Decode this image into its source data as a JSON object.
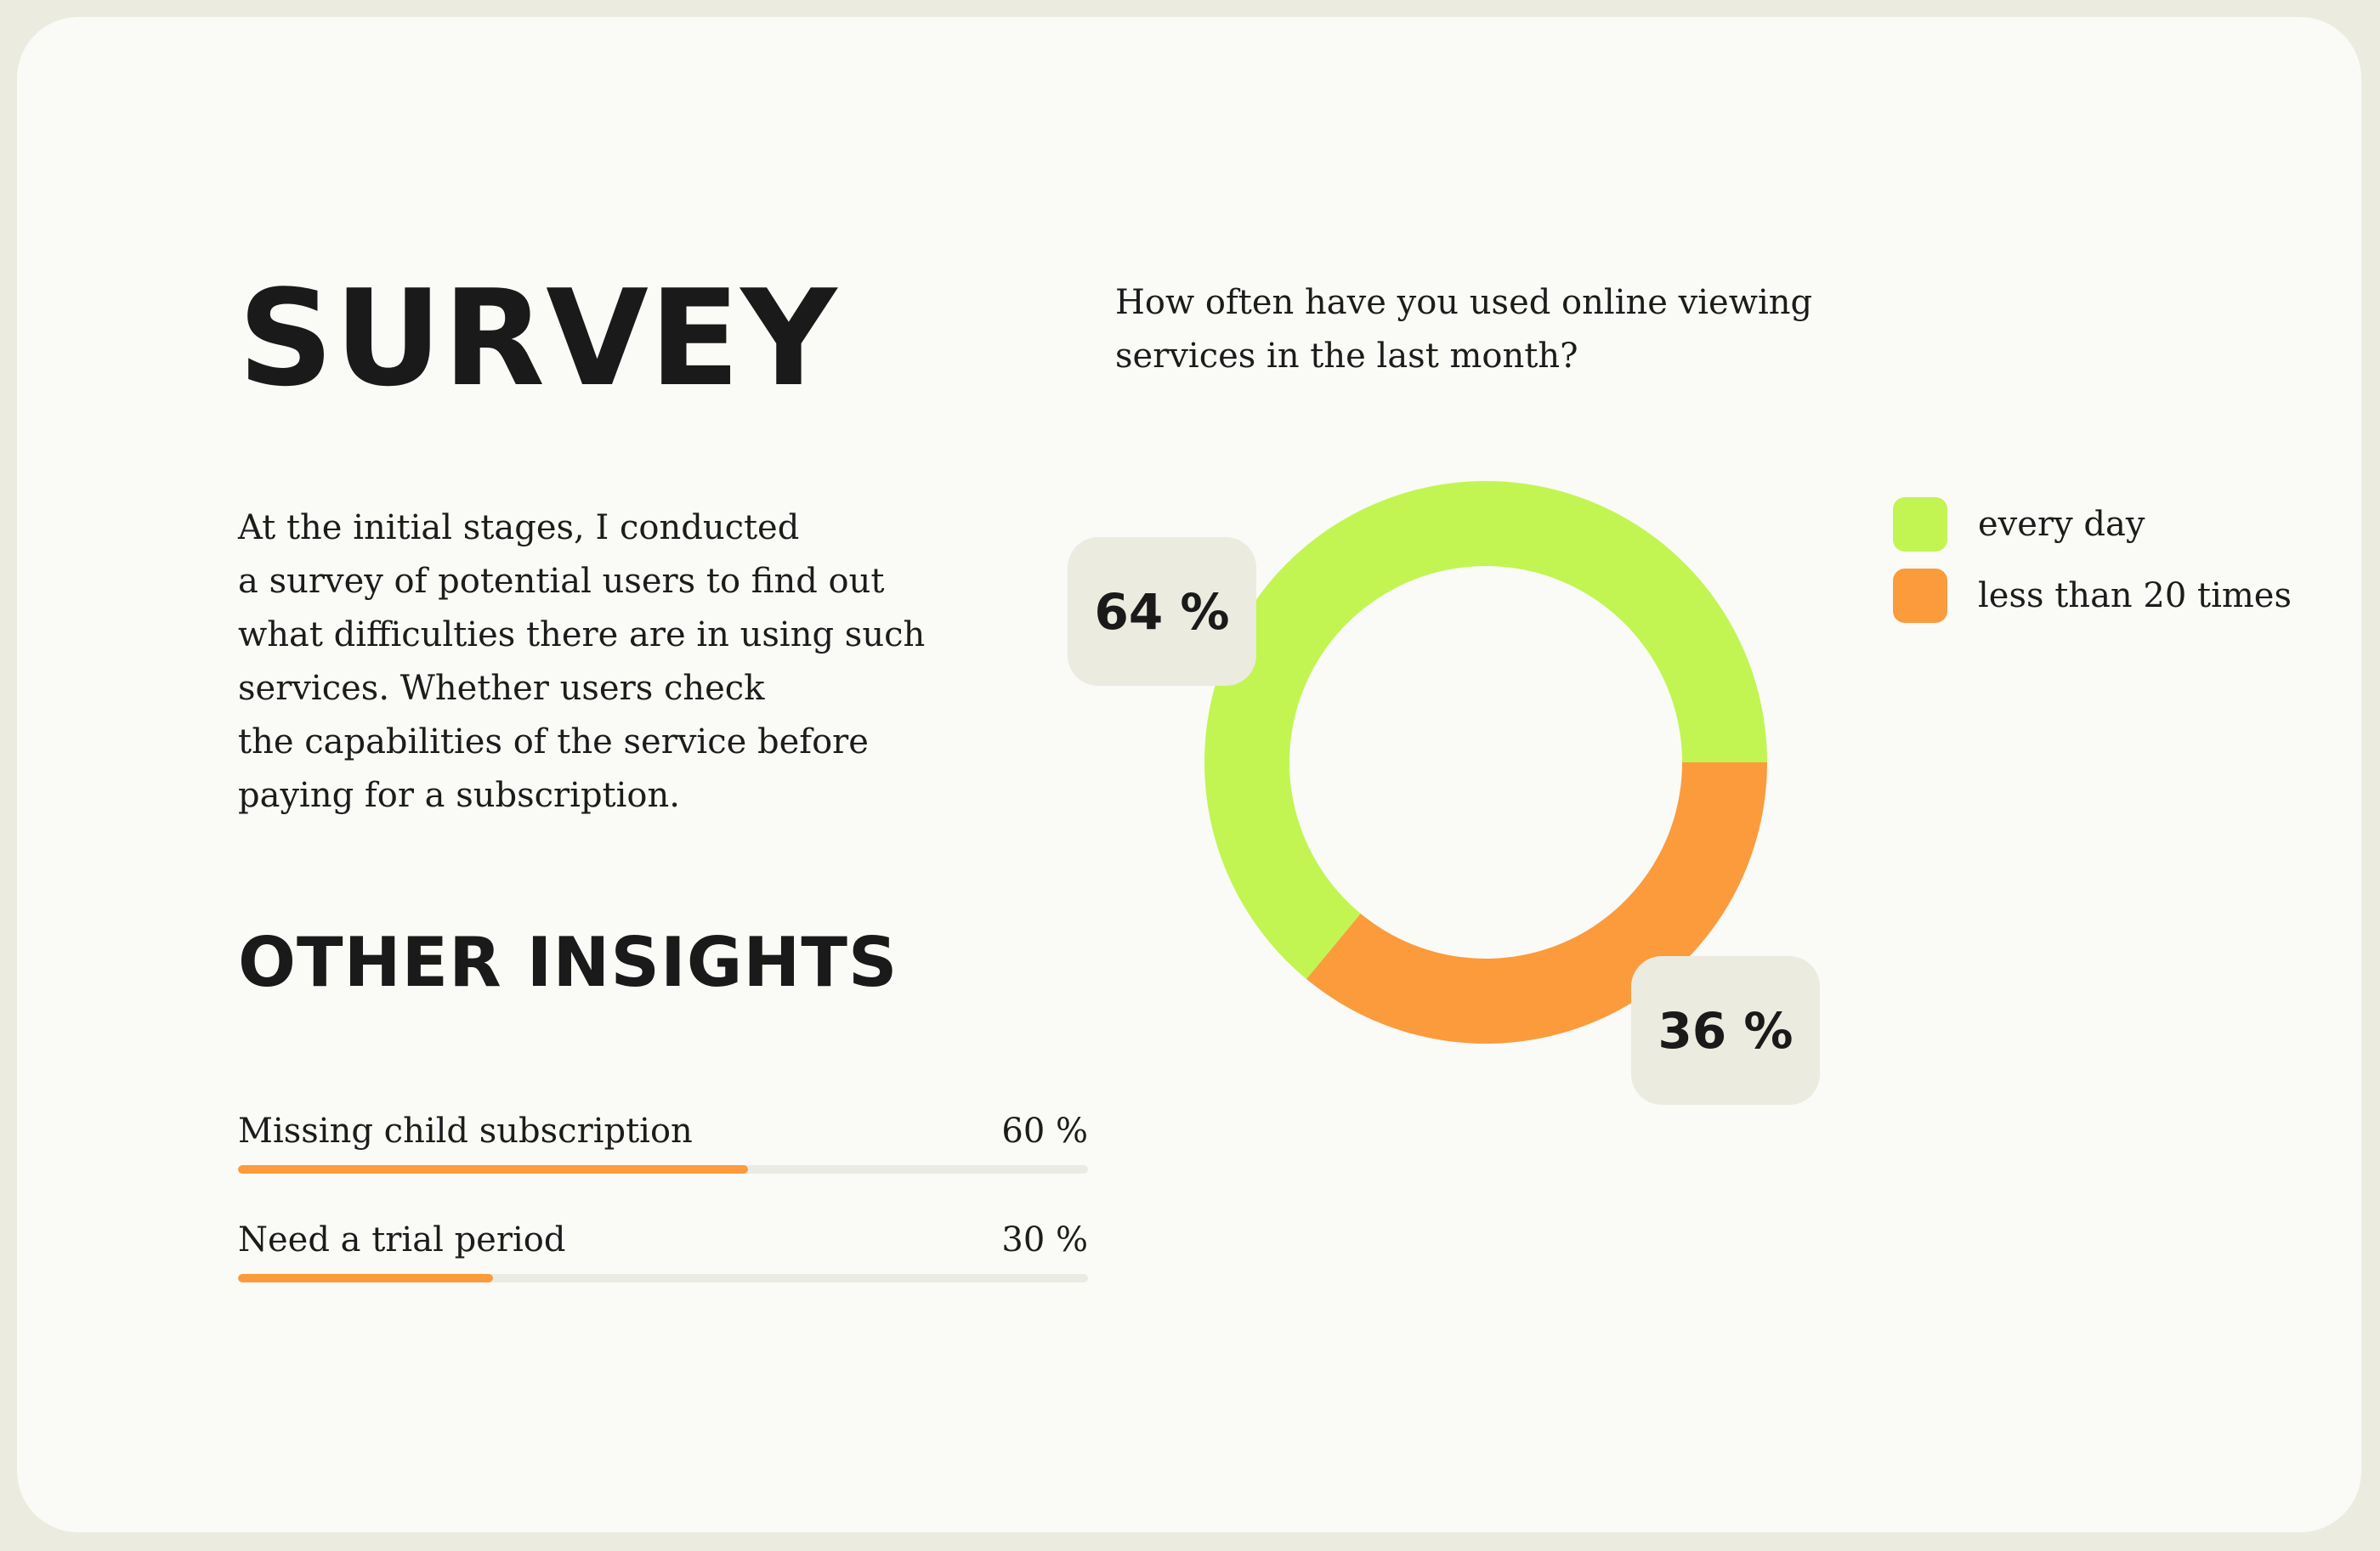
{
  "header": {
    "title": "SURVEY"
  },
  "intro_lines": [
    "At the initial stages, I conducted",
    "a survey of potential users to find out",
    "what difficulties there are in using such",
    "services. Whether users check",
    "the capabilities of the service before",
    "paying for a subscription."
  ],
  "insights": {
    "title": "OTHER INSIGHTS",
    "items": [
      {
        "label": "Missing child subscription",
        "value_text": "60 %",
        "value": 60
      },
      {
        "label": "Need a trial period",
        "value_text": "30 %",
        "value": 30
      }
    ]
  },
  "chart_data": {
    "type": "pie",
    "title_lines": [
      "How often have you used online viewing",
      "services in the last month?"
    ],
    "donut": true,
    "categories": [
      "every day",
      "less than 20 times"
    ],
    "values": [
      64,
      36
    ],
    "labels": [
      "64 %",
      "36 %"
    ],
    "colors": [
      "#c2f551",
      "#fb9b3c"
    ],
    "legend": "top-right"
  },
  "colors": {
    "background": "#ebebe0",
    "card": "#fafaf7",
    "accent_orange": "#fb9b3c",
    "accent_green": "#c2f551",
    "track": "#ebebe3"
  }
}
